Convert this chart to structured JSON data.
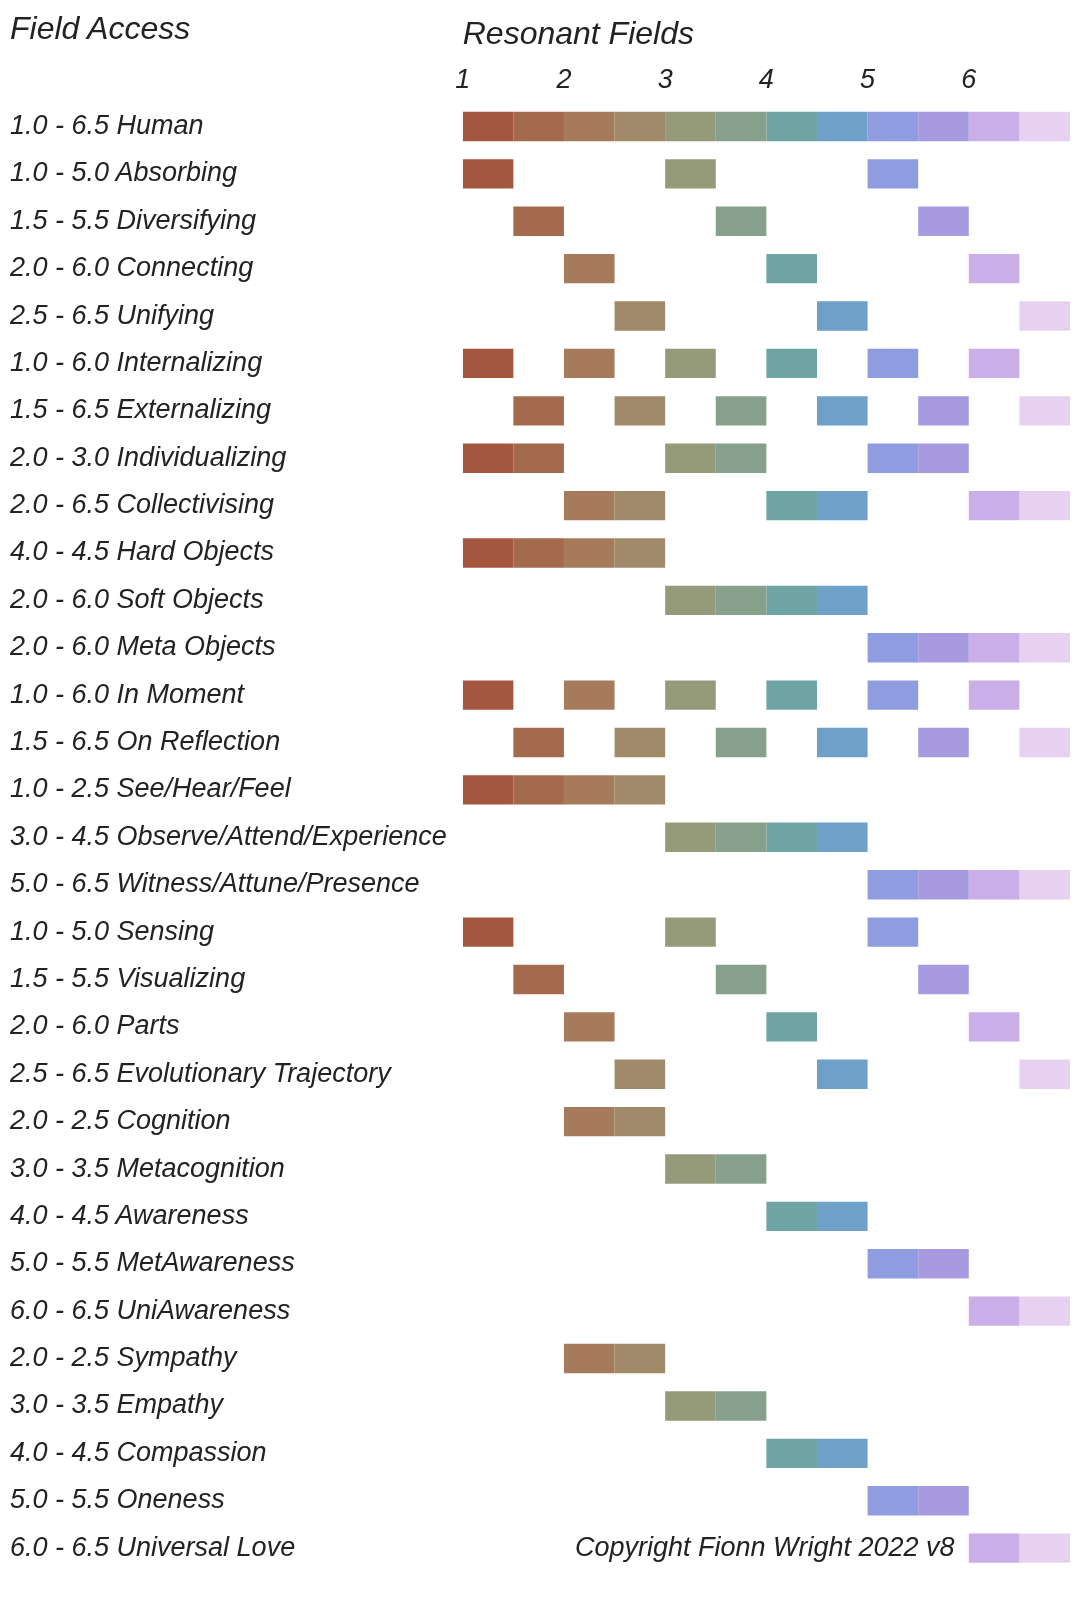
{
  "chart_data": {
    "type": "bar",
    "orientation": "horizontal",
    "xlabel": "Resonant Fields",
    "ylabel": "Field Access",
    "categories": [
      "1.0 - 6.5 Human",
      "1.0 - 5.0 Absorbing",
      "1.5 - 5.5 Diversifying",
      "2.0 - 6.0 Connecting",
      "2.5 - 6.5 Unifying",
      "1.0 - 6.0 Internalizing",
      "1.5 - 6.5 Externalizing",
      "2.0 - 3.0 Individualizing",
      "2.0 - 6.5 Collectivising",
      "4.0 - 4.5 Hard Objects",
      "2.0 - 6.0 Soft Objects",
      "2.0 - 6.0 Meta Objects",
      "1.0 - 6.0 In Moment",
      "1.5 - 6.5 On Reflection",
      "1.0 - 2.5 See/Hear/Feel",
      "3.0 - 4.5 Observe/Attend/Experience",
      "5.0 - 6.5 Witness/Attune/Presence",
      "1.0 - 5.0 Sensing",
      "1.5 - 5.5 Visualizing",
      "2.0 - 6.0 Parts",
      "2.5 - 6.5 Evolutionary Trajectory",
      "2.0 - 2.5 Cognition",
      "3.0 - 3.5 Metacognition",
      "4.0 - 4.5 Awareness",
      "5.0 - 5.5 MetAwareness",
      "6.0 - 6.5 UniAwareness",
      "2.0 - 2.5 Sympathy",
      "3.0 - 3.5 Empathy",
      "4.0 - 4.5 Compassion",
      "5.0 - 5.5 Oneness",
      "6.0 - 6.5 Universal Love"
    ],
    "xlim": [
      1,
      7
    ],
    "xticks": [
      1,
      2,
      3,
      4,
      5,
      6
    ],
    "legend": false,
    "annotations": [
      "Copyright Fionn Wright 2022 v8"
    ],
    "series": [
      {
        "color": "#a4563f",
        "base": [
          1,
          1,
          null,
          null,
          null,
          1,
          null,
          1,
          null,
          1,
          null,
          null,
          1,
          null,
          1,
          null,
          null,
          1,
          null,
          null,
          null,
          null,
          null,
          null,
          null,
          null,
          null,
          null,
          null,
          null,
          null
        ],
        "values": [
          0.5,
          0.5,
          null,
          null,
          null,
          0.5,
          null,
          0.5,
          null,
          0.5,
          null,
          null,
          0.5,
          null,
          0.5,
          null,
          null,
          0.5,
          null,
          null,
          null,
          null,
          null,
          null,
          null,
          null,
          null,
          null,
          null,
          null,
          null
        ]
      },
      {
        "color": "#a46a4e",
        "base": [
          1.5,
          null,
          1.5,
          null,
          null,
          null,
          1.5,
          1.5,
          null,
          1.5,
          null,
          null,
          null,
          1.5,
          1.5,
          null,
          null,
          null,
          1.5,
          null,
          null,
          null,
          null,
          null,
          null,
          null,
          null,
          null,
          null,
          null,
          null
        ],
        "values": [
          0.5,
          null,
          0.5,
          null,
          null,
          null,
          0.5,
          0.5,
          null,
          0.5,
          null,
          null,
          null,
          0.5,
          0.5,
          null,
          null,
          null,
          0.5,
          null,
          null,
          null,
          null,
          null,
          null,
          null,
          null,
          null,
          null,
          null,
          null
        ]
      },
      {
        "color": "#a57b5b",
        "base": [
          2,
          null,
          null,
          2,
          null,
          2,
          null,
          null,
          2,
          2,
          null,
          null,
          2,
          null,
          2,
          null,
          null,
          null,
          null,
          2,
          null,
          2,
          null,
          null,
          null,
          null,
          2,
          null,
          null,
          null,
          null
        ],
        "values": [
          0.5,
          null,
          null,
          0.5,
          null,
          0.5,
          null,
          null,
          0.5,
          0.5,
          null,
          null,
          0.5,
          null,
          0.5,
          null,
          null,
          null,
          null,
          0.5,
          null,
          0.5,
          null,
          null,
          null,
          null,
          0.5,
          null,
          null,
          null,
          null
        ]
      },
      {
        "color": "#a08a6a",
        "base": [
          2.5,
          null,
          null,
          null,
          2.5,
          null,
          2.5,
          null,
          2.5,
          2.5,
          null,
          null,
          null,
          2.5,
          2.5,
          null,
          null,
          null,
          null,
          null,
          2.5,
          2.5,
          null,
          null,
          null,
          null,
          2.5,
          null,
          null,
          null,
          null
        ],
        "values": [
          0.5,
          null,
          null,
          null,
          0.5,
          null,
          0.5,
          null,
          0.5,
          0.5,
          null,
          null,
          null,
          0.5,
          0.5,
          null,
          null,
          null,
          null,
          null,
          0.5,
          0.5,
          null,
          null,
          null,
          null,
          0.5,
          null,
          null,
          null,
          null
        ]
      },
      {
        "color": "#959a7a",
        "base": [
          3,
          3,
          null,
          null,
          null,
          3,
          null,
          3,
          null,
          null,
          3,
          null,
          3,
          null,
          null,
          3,
          null,
          3,
          null,
          null,
          null,
          null,
          3,
          null,
          null,
          null,
          null,
          3,
          null,
          null,
          null
        ],
        "values": [
          0.5,
          0.5,
          null,
          null,
          null,
          0.5,
          null,
          0.5,
          null,
          null,
          0.5,
          null,
          0.5,
          null,
          null,
          0.5,
          null,
          0.5,
          null,
          null,
          null,
          null,
          0.5,
          null,
          null,
          null,
          null,
          0.5,
          null,
          null,
          null
        ]
      },
      {
        "color": "#87a08c",
        "base": [
          3.5,
          null,
          3.5,
          null,
          null,
          null,
          3.5,
          3.5,
          null,
          null,
          3.5,
          null,
          null,
          3.5,
          null,
          3.5,
          null,
          null,
          3.5,
          null,
          null,
          null,
          3.5,
          null,
          null,
          null,
          null,
          3.5,
          null,
          null,
          null
        ],
        "values": [
          0.5,
          null,
          0.5,
          null,
          null,
          null,
          0.5,
          0.5,
          null,
          null,
          0.5,
          null,
          null,
          0.5,
          null,
          0.5,
          null,
          null,
          0.5,
          null,
          null,
          null,
          0.5,
          null,
          null,
          null,
          null,
          0.5,
          null,
          null,
          null
        ]
      },
      {
        "color": "#6ea4a4",
        "base": [
          4,
          null,
          null,
          4,
          null,
          4,
          null,
          null,
          4,
          null,
          4,
          null,
          4,
          null,
          null,
          4,
          null,
          null,
          null,
          4,
          null,
          null,
          null,
          4,
          null,
          null,
          null,
          null,
          4,
          null,
          null
        ],
        "values": [
          0.5,
          null,
          null,
          0.5,
          null,
          0.5,
          null,
          null,
          0.5,
          null,
          0.5,
          null,
          0.5,
          null,
          null,
          0.5,
          null,
          null,
          null,
          0.5,
          null,
          null,
          null,
          0.5,
          null,
          null,
          null,
          null,
          0.5,
          null,
          null
        ]
      },
      {
        "color": "#6fa0c8",
        "base": [
          4.5,
          null,
          null,
          null,
          4.5,
          null,
          4.5,
          null,
          4.5,
          null,
          4.5,
          null,
          null,
          4.5,
          null,
          4.5,
          null,
          null,
          null,
          null,
          4.5,
          null,
          null,
          4.5,
          null,
          null,
          null,
          null,
          4.5,
          null,
          null
        ],
        "values": [
          0.5,
          null,
          null,
          null,
          0.5,
          null,
          0.5,
          null,
          0.5,
          null,
          0.5,
          null,
          null,
          0.5,
          null,
          0.5,
          null,
          null,
          null,
          null,
          0.5,
          null,
          null,
          0.5,
          null,
          null,
          null,
          null,
          0.5,
          null,
          null
        ]
      },
      {
        "color": "#8f9ce0",
        "base": [
          5,
          5,
          null,
          null,
          null,
          5,
          null,
          5,
          null,
          null,
          null,
          5,
          5,
          null,
          null,
          null,
          5,
          5,
          null,
          null,
          null,
          null,
          null,
          null,
          5,
          null,
          null,
          null,
          null,
          5,
          null
        ],
        "values": [
          0.5,
          0.5,
          null,
          null,
          null,
          0.5,
          null,
          0.5,
          null,
          null,
          null,
          0.5,
          0.5,
          null,
          null,
          null,
          0.5,
          0.5,
          null,
          null,
          null,
          null,
          null,
          null,
          0.5,
          null,
          null,
          null,
          null,
          0.5,
          null
        ]
      },
      {
        "color": "#a89ae0",
        "base": [
          5.5,
          null,
          5.5,
          null,
          null,
          null,
          5.5,
          5.5,
          null,
          null,
          null,
          5.5,
          null,
          5.5,
          null,
          null,
          5.5,
          null,
          5.5,
          null,
          null,
          null,
          null,
          null,
          5.5,
          null,
          null,
          null,
          null,
          5.5,
          null
        ],
        "values": [
          0.5,
          null,
          0.5,
          null,
          null,
          null,
          0.5,
          0.5,
          null,
          null,
          null,
          0.5,
          null,
          0.5,
          null,
          null,
          0.5,
          null,
          0.5,
          null,
          null,
          null,
          null,
          null,
          0.5,
          null,
          null,
          null,
          null,
          0.5,
          null
        ]
      },
      {
        "color": "#c9aee8",
        "base": [
          6,
          null,
          null,
          6,
          null,
          6,
          null,
          null,
          6,
          null,
          null,
          6,
          6,
          null,
          null,
          null,
          6,
          null,
          null,
          6,
          null,
          null,
          null,
          null,
          null,
          6,
          null,
          null,
          null,
          null,
          6
        ],
        "values": [
          0.5,
          null,
          null,
          0.5,
          null,
          0.5,
          null,
          null,
          0.5,
          null,
          null,
          0.5,
          0.5,
          null,
          null,
          null,
          0.5,
          null,
          null,
          0.5,
          null,
          null,
          null,
          null,
          null,
          0.5,
          null,
          null,
          null,
          null,
          0.5
        ]
      },
      {
        "color": "#e6d2f0",
        "base": [
          6.5,
          null,
          null,
          null,
          6.5,
          null,
          6.5,
          null,
          6.5,
          null,
          null,
          6.5,
          null,
          6.5,
          null,
          null,
          6.5,
          null,
          null,
          null,
          6.5,
          null,
          null,
          null,
          null,
          6.5,
          null,
          null,
          null,
          null,
          6.5
        ],
        "values": [
          0.5,
          null,
          null,
          null,
          0.5,
          null,
          0.5,
          null,
          0.5,
          null,
          null,
          0.5,
          null,
          0.5,
          null,
          null,
          0.5,
          null,
          null,
          null,
          0.5,
          null,
          null,
          null,
          null,
          0.5,
          null,
          null,
          null,
          null,
          0.5
        ]
      }
    ]
  }
}
